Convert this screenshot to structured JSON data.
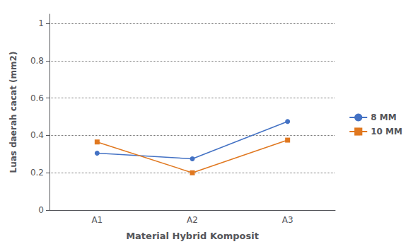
{
  "chart_data": {
    "type": "line",
    "categories": [
      "A1",
      "A2",
      "A3"
    ],
    "series": [
      {
        "name": "8 MM",
        "color": "#4472C4",
        "marker": "circle",
        "values": [
          0.305,
          0.275,
          0.475
        ]
      },
      {
        "name": "10 MM",
        "color": "#E07820",
        "marker": "square",
        "values": [
          0.365,
          0.2,
          0.375
        ]
      }
    ],
    "xlabel": "Material Hybrid Komposit",
    "ylabel": "Luas daerah cacat (mm2)",
    "ylim": [
      0,
      1.05
    ],
    "yticks": [
      0,
      0.2,
      0.4,
      0.6,
      0.8,
      1
    ],
    "grid": true,
    "legend": "right"
  }
}
